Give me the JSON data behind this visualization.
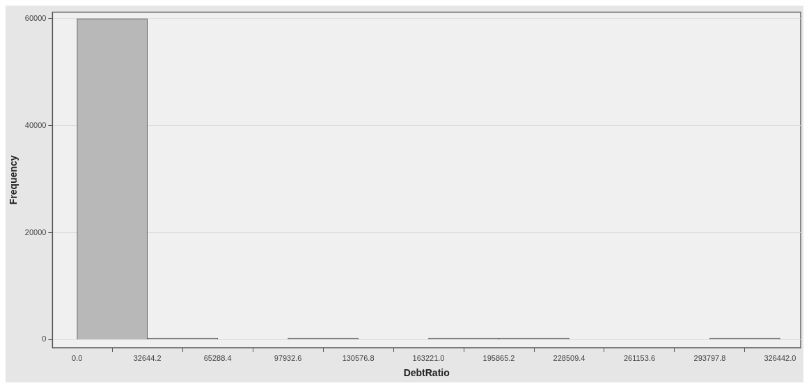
{
  "chart_data": {
    "type": "histogram",
    "xlabel": "DebtRatio",
    "ylabel": "Frequency",
    "bins": [
      0,
      32644.2,
      65288.4,
      97932.6,
      130576.8,
      163221.0,
      195865.2,
      228509.4,
      261153.6,
      293797.8,
      326442.0
    ],
    "values": [
      60000,
      300,
      0,
      300,
      0,
      300,
      300,
      0,
      0,
      300
    ],
    "color": "#b8b8b8",
    "xlim": [
      -11400,
      336000
    ],
    "xticks": [
      {
        "value": 0,
        "label": "0.0"
      },
      32644.2,
      65288.4,
      97932.6,
      130576.8,
      {
        "value": 163221.0,
        "label": "163221.0"
      },
      195865.2,
      228509.4,
      261153.6,
      293797.8,
      {
        "value": 326442.0,
        "label": "326442.0"
      }
    ],
    "ylim": [
      -1500,
      61200
    ],
    "yticks": [
      0,
      20000,
      40000,
      60000
    ],
    "grid": "y"
  }
}
